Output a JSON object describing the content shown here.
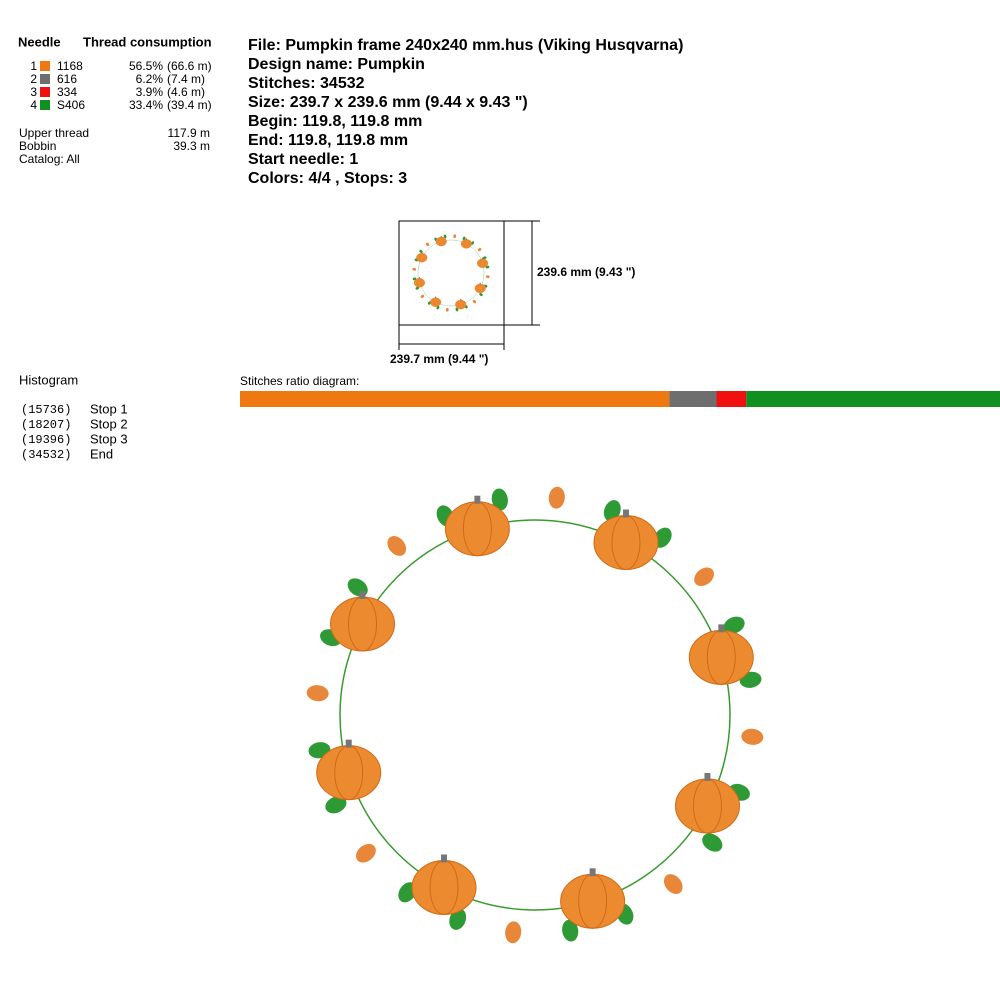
{
  "header": {
    "needle": "Needle",
    "thread_consumption": "Thread consumption"
  },
  "threads": [
    {
      "needle": "1",
      "code": "1168",
      "color": "#f07810",
      "percent": {
        "value": 56.5,
        "label": "56.5%"
      },
      "length": "(66.6 m)"
    },
    {
      "needle": "2",
      "code": "616",
      "color": "#6e6e6e",
      "percent": {
        "value": 6.2,
        "label": "6.2%"
      },
      "length": "(7.4 m)"
    },
    {
      "needle": "3",
      "code": "334",
      "color": "#f01010",
      "percent": {
        "value": 3.9,
        "label": "3.9%"
      },
      "length": "(4.6 m)"
    },
    {
      "needle": "4",
      "code": "S406",
      "color": "#109020",
      "percent": {
        "value": 33.4,
        "label": "33.4%"
      },
      "length": "(39.4 m)"
    }
  ],
  "totals": [
    {
      "label": "Upper thread",
      "value": "117.9 m"
    },
    {
      "label": "Bobbin",
      "value": "39.3 m"
    }
  ],
  "catalog": "Catalog: All",
  "info": [
    "File: Pumpkin frame 240x240 mm.hus  (Viking Husqvarna)",
    "Design name: Pumpkin",
    "Stitches: 34532",
    "Size: 239.7 x 239.6 mm (9.44 x 9.43 \")",
    "Begin: 119.8, 119.8 mm",
    "End: 119.8, 119.8 mm",
    "Start needle: 1",
    "Colors: 4/4 , Stops: 3"
  ],
  "dimension": {
    "height": "239.6 mm (9.43 \")",
    "width": "239.7 mm (9.44 \")"
  },
  "histogram": {
    "title": "Histogram",
    "stops": [
      {
        "count": "(15736)",
        "label": "Stop 1"
      },
      {
        "count": "(18207)",
        "label": "Stop 2"
      },
      {
        "count": "(19396)",
        "label": "Stop 3"
      },
      {
        "count": "(34532)",
        "label": "End"
      }
    ]
  },
  "ratio_title": "Stitches ratio diagram:"
}
